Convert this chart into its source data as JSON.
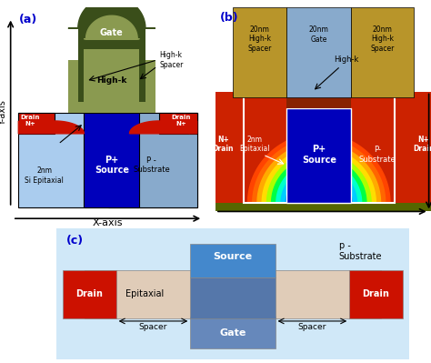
{
  "fig_width": 4.74,
  "fig_height": 3.99,
  "bg_color": "#ffffff",
  "panel_a": {
    "label": "(a)",
    "bg": "#ffffff",
    "yaxis_label": "Y-axis",
    "xaxis_label": "X-axis",
    "gate_dark_color": "#3a4e1a",
    "gate_light_color": "#8a9a50",
    "highk_color": "#b8a040",
    "drain_color": "#cc1100",
    "epitaxial_color": "#aaccee",
    "source_color": "#0000bb",
    "substrate_color": "#88aacc",
    "gate_label": "Gate",
    "highk_label": "High-k",
    "highk_spacer_label": "High-k\nSpacer",
    "drain_label": "Drain\nN+",
    "source_label": "P+\nSource",
    "epitaxial_label": "2nm\nSi Epitaxial",
    "substrate_label": "P -\nSubstrate"
  },
  "panel_b": {
    "label": "(b)",
    "spacer_color": "#b8952a",
    "gate_color": "#88aacc",
    "highk_color": "#882200",
    "bg_color": "#cc2200",
    "source_color": "#0000bb",
    "substrate_color": "#cc3300",
    "epitaxial_label": "2nm\nEpitaxial",
    "spacer_label_left": "20nm\nHigh-k\nSpacer",
    "gate_label": "20nm\nGate",
    "spacer_label_right": "20nm\nHigh-k\nSpacer",
    "highk_label": "High-k",
    "drain_label_left": "N+\nDrain",
    "source_label": "P+\nSource",
    "substrate_label": "P-\nSubstrate",
    "drain_label_right": "N+\nDrain",
    "olive_color": "#556600"
  },
  "panel_c": {
    "label": "(c)",
    "bg": "#d0e8f8",
    "drain_color": "#cc1100",
    "epitaxial_color": "#e0ccb8",
    "source_color": "#4488cc",
    "gate_color": "#6688bb",
    "overlap_color": "#5577aa",
    "source_label": "Source",
    "drain_label": "Drain",
    "epitaxial_label": "Epitaxial",
    "gate_label": "Gate",
    "spacer_label": "Spacer",
    "substrate_label": "p -\nSubstrate"
  }
}
